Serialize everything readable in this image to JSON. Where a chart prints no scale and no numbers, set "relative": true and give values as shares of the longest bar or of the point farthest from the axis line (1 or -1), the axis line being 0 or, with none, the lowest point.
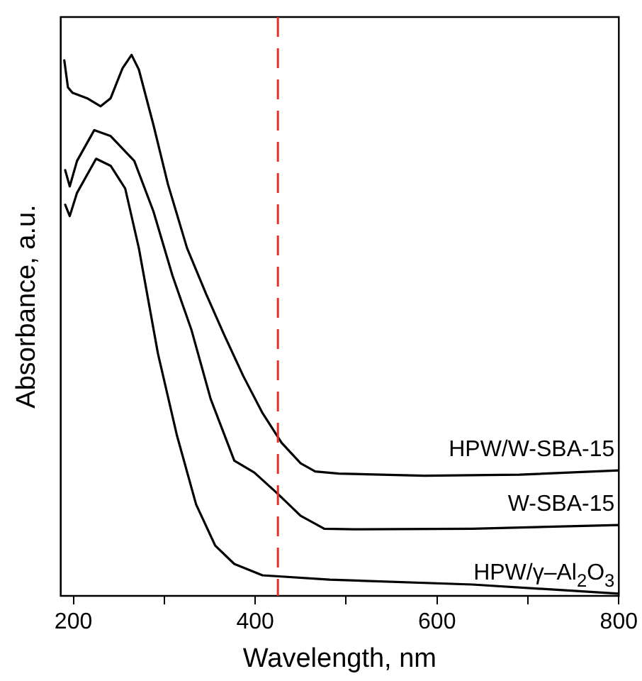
{
  "chart_data": {
    "type": "line",
    "relative": true,
    "xlabel": "Wavelength, nm",
    "ylabel": "Absorbance, a.u.",
    "xlim": [
      186,
      800
    ],
    "xticks": [
      200,
      {
        "value": 300,
        "label": null
      },
      400,
      {
        "value": 500,
        "label": null
      },
      600,
      {
        "value": 700,
        "label": null
      },
      800
    ],
    "grid": false,
    "legend": false,
    "marker": "none",
    "line_style": "solid",
    "ref_lines": [
      {
        "axis": "x",
        "value": 425,
        "color": "#e8302a",
        "line_style": "dashed"
      }
    ],
    "series": [
      {
        "name": "HPW/W-SBA-15",
        "color": "#000000",
        "x": [
          190,
          194,
          199,
          215,
          230,
          241,
          254,
          264,
          272,
          288,
          304,
          325,
          346,
          366,
          387,
          408,
          429,
          450,
          466,
          492,
          586,
          691,
          800
        ],
        "values": [
          0.99,
          0.94,
          0.93,
          0.92,
          0.905,
          0.92,
          0.975,
          1.0,
          0.973,
          0.871,
          0.761,
          0.643,
          0.558,
          0.482,
          0.406,
          0.338,
          0.283,
          0.245,
          0.23,
          0.226,
          0.222,
          0.224,
          0.232
        ]
      },
      {
        "name": "W-SBA-15",
        "color": "#000000",
        "x": [
          191,
          196,
          204,
          223,
          241,
          267,
          288,
          309,
          330,
          351,
          377,
          399,
          424,
          450,
          476,
          508,
          639,
          800
        ],
        "values": [
          0.787,
          0.757,
          0.804,
          0.861,
          0.85,
          0.804,
          0.711,
          0.592,
          0.491,
          0.364,
          0.25,
          0.228,
          0.19,
          0.148,
          0.124,
          0.123,
          0.124,
          0.131
        ]
      },
      {
        "name": "HPW/γ–Al$_{2}$O$_{3}$",
        "color": "#000000",
        "x": [
          191,
          196,
          204,
          225,
          241,
          257,
          272,
          293,
          314,
          335,
          356,
          377,
          408,
          482,
          639,
          800
        ],
        "values": [
          0.723,
          0.702,
          0.745,
          0.808,
          0.795,
          0.753,
          0.643,
          0.448,
          0.296,
          0.169,
          0.093,
          0.059,
          0.038,
          0.03,
          0.021,
          0.004
        ]
      }
    ]
  }
}
